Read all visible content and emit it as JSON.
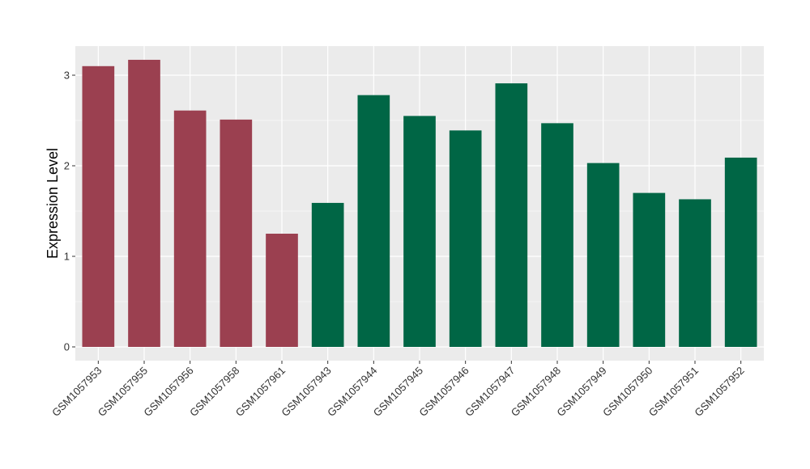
{
  "chart_data": {
    "type": "bar",
    "title": "",
    "xlabel": "",
    "ylabel": "Expression Level",
    "ylim": [
      0,
      3.3
    ],
    "yticks": [
      0,
      1,
      2,
      3
    ],
    "grid": true,
    "legend": "none",
    "categories": [
      "GSM1057953",
      "GSM1057955",
      "GSM1057956",
      "GSM1057958",
      "GSM1057961",
      "GSM1057943",
      "GSM1057944",
      "GSM1057945",
      "GSM1057946",
      "GSM1057947",
      "GSM1057948",
      "GSM1057949",
      "GSM1057950",
      "GSM1057951",
      "GSM1057952"
    ],
    "values": [
      3.1,
      3.17,
      2.61,
      2.51,
      1.25,
      1.59,
      2.78,
      2.55,
      2.39,
      2.91,
      2.47,
      2.03,
      1.7,
      1.63,
      2.09
    ],
    "groups": [
      "a",
      "a",
      "a",
      "a",
      "a",
      "b",
      "b",
      "b",
      "b",
      "b",
      "b",
      "b",
      "b",
      "b",
      "b"
    ],
    "colors": {
      "a": "#9b4050",
      "b": "#006645"
    },
    "panel_background": "#ebebeb",
    "gridline_color": "#ffffff"
  }
}
